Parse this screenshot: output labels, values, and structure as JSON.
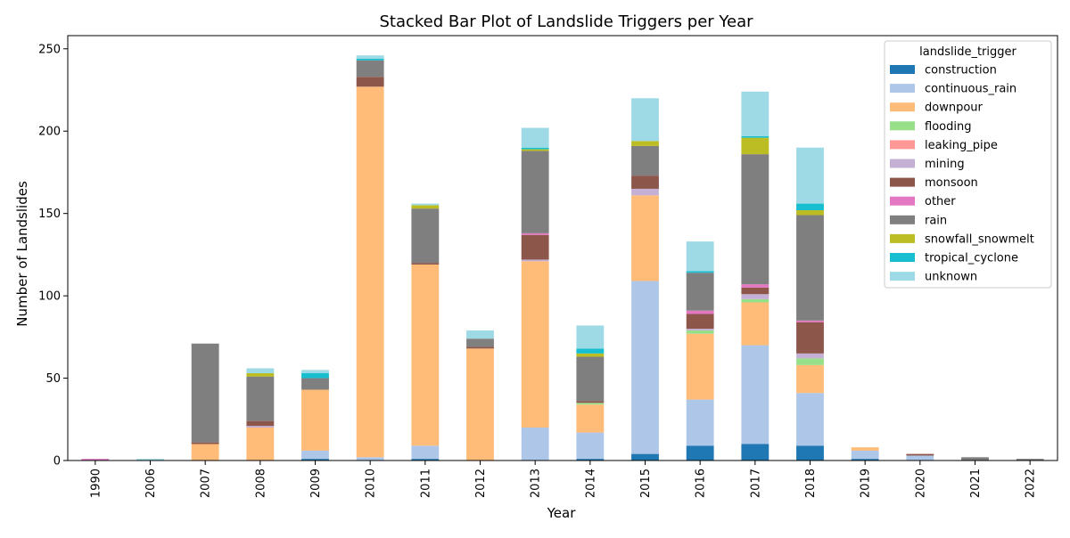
{
  "chart_data": {
    "type": "bar",
    "stacked": true,
    "title": "Stacked Bar Plot of Landslide Triggers per Year",
    "xlabel": "Year",
    "ylabel": "Number of Landslides",
    "ylim": [
      0,
      258
    ],
    "yticks": [
      0,
      50,
      100,
      150,
      200,
      250
    ],
    "grid": false,
    "legend": {
      "title": "landslide_trigger",
      "placement": "top-right"
    },
    "categories": [
      "1990",
      "2006",
      "2007",
      "2008",
      "2009",
      "2010",
      "2011",
      "2012",
      "2013",
      "2014",
      "2015",
      "2016",
      "2017",
      "2018",
      "2019",
      "2020",
      "2021",
      "2022"
    ],
    "series": [
      {
        "name": "construction",
        "color": "#1f77b4",
        "values": [
          0,
          0,
          0,
          0,
          1,
          0,
          1,
          0,
          0,
          1,
          4,
          9,
          10,
          9,
          1,
          0,
          0,
          0
        ]
      },
      {
        "name": "continuous_rain",
        "color": "#aec7e8",
        "values": [
          0,
          0,
          0,
          0,
          5,
          2,
          8,
          0,
          20,
          16,
          105,
          28,
          60,
          32,
          5,
          3,
          0,
          0
        ]
      },
      {
        "name": "downpour",
        "color": "#ffbb78",
        "values": [
          0,
          0,
          10,
          20,
          37,
          225,
          110,
          68,
          101,
          17,
          52,
          40,
          26,
          17,
          2,
          0,
          0,
          0
        ]
      },
      {
        "name": "flooding",
        "color": "#98df8a",
        "values": [
          0,
          0,
          0,
          0,
          0,
          0,
          0,
          0,
          0,
          1,
          0,
          2,
          2,
          4,
          0,
          0,
          0,
          0
        ]
      },
      {
        "name": "leaking_pipe",
        "color": "#ff9896",
        "values": [
          0,
          0,
          0,
          0,
          0,
          0,
          0,
          0,
          0,
          0,
          0,
          0,
          0,
          0,
          0,
          0,
          0,
          0
        ]
      },
      {
        "name": "mining",
        "color": "#c5b0d5",
        "values": [
          0,
          0,
          0,
          1,
          0,
          0,
          0,
          0,
          1,
          0,
          4,
          1,
          3,
          3,
          0,
          0,
          0,
          0
        ]
      },
      {
        "name": "monsoon",
        "color": "#8c564b",
        "values": [
          0,
          0,
          1,
          3,
          0,
          6,
          1,
          1,
          15,
          1,
          8,
          9,
          4,
          19,
          0,
          1,
          0,
          0
        ]
      },
      {
        "name": "other",
        "color": "#e377c2",
        "values": [
          1,
          0,
          0,
          0,
          0,
          0,
          0,
          0,
          1,
          0,
          0,
          2,
          2,
          1,
          0,
          0,
          0,
          0
        ]
      },
      {
        "name": "rain",
        "color": "#7f7f7f",
        "values": [
          0,
          0,
          60,
          27,
          7,
          10,
          33,
          5,
          50,
          27,
          18,
          23,
          79,
          64,
          0,
          0,
          2,
          1
        ]
      },
      {
        "name": "snowfall_snowmelt",
        "color": "#bcbd22",
        "values": [
          0,
          0,
          0,
          2,
          0,
          0,
          2,
          0,
          1,
          2,
          3,
          0,
          10,
          3,
          0,
          0,
          0,
          0
        ]
      },
      {
        "name": "tropical_cyclone",
        "color": "#17becf",
        "values": [
          0,
          0,
          0,
          0,
          3,
          1,
          0,
          0,
          1,
          3,
          0,
          1,
          1,
          4,
          0,
          0,
          0,
          0
        ]
      },
      {
        "name": "unknown",
        "color": "#9edae5",
        "values": [
          0,
          1,
          0,
          3,
          2,
          2,
          1,
          5,
          12,
          14,
          26,
          18,
          27,
          34,
          0,
          0,
          0,
          0
        ]
      }
    ]
  }
}
